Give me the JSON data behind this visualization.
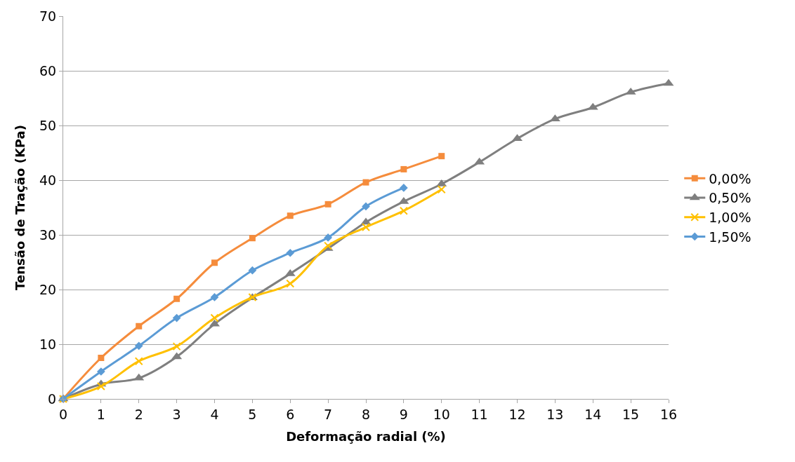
{
  "chart_data": {
    "type": "line",
    "xlabel": "Deformação radial (%)",
    "ylabel": "Tensão de Tração (KPa)",
    "xlim": [
      0,
      16
    ],
    "xticks": [
      0,
      1,
      2,
      3,
      4,
      5,
      6,
      7,
      8,
      9,
      10,
      11,
      12,
      13,
      14,
      15,
      16
    ],
    "ylim": [
      0,
      70
    ],
    "yticks": [
      0,
      10,
      20,
      30,
      40,
      50,
      60,
      70
    ],
    "grid": "y",
    "legend": "right",
    "series": [
      {
        "name": "0,00%",
        "color": "#f58c3c",
        "marker": "square",
        "x": [
          0,
          1,
          2,
          3,
          4,
          5,
          6,
          7,
          8,
          9,
          10
        ],
        "values": [
          0,
          7.5,
          13.3,
          18.3,
          24.9,
          29.4,
          33.5,
          35.6,
          39.6,
          42.0,
          44.4
        ]
      },
      {
        "name": "0,50%",
        "color": "#7f7f7f",
        "marker": "triangle",
        "x": [
          0,
          1,
          2,
          3,
          4,
          5,
          6,
          7,
          8,
          9,
          10,
          11,
          12,
          13,
          14,
          15,
          16
        ],
        "values": [
          0,
          2.7,
          3.8,
          7.7,
          13.7,
          18.5,
          22.9,
          27.5,
          32.3,
          36.1,
          39.3,
          43.3,
          47.6,
          51.2,
          53.3,
          56.1,
          57.7
        ]
      },
      {
        "name": "1,00%",
        "color": "#ffc000",
        "marker": "cross",
        "x": [
          0,
          1,
          2,
          3,
          4,
          5,
          6,
          7,
          8,
          9,
          10
        ],
        "values": [
          0,
          2.3,
          6.9,
          9.6,
          14.8,
          18.6,
          21.1,
          28.0,
          31.4,
          34.4,
          38.3
        ]
      },
      {
        "name": "1,50%",
        "color": "#5b9bd5",
        "marker": "diamond",
        "x": [
          0,
          1,
          2,
          3,
          4,
          5,
          6,
          7,
          8,
          9
        ],
        "values": [
          0,
          5.0,
          9.7,
          14.8,
          18.6,
          23.5,
          26.7,
          29.5,
          35.2,
          38.6
        ]
      }
    ]
  }
}
